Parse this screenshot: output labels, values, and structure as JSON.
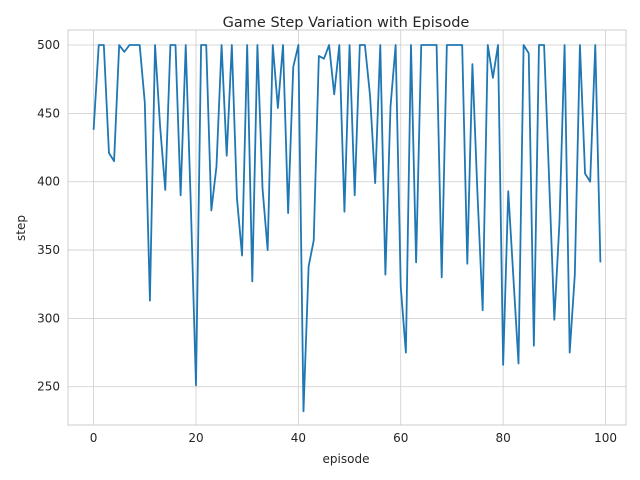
{
  "chart_data": {
    "type": "line",
    "title": "Game Step Variation with Episode",
    "xlabel": "episode",
    "ylabel": "step",
    "xlim": [
      -5,
      104
    ],
    "ylim": [
      222,
      511
    ],
    "xticks": [
      0,
      20,
      40,
      60,
      80,
      100
    ],
    "yticks": [
      250,
      300,
      350,
      400,
      450,
      500
    ],
    "grid": true,
    "color": "#1f77b4",
    "series": [
      {
        "x": [
          0,
          1,
          2,
          3,
          4,
          5,
          6,
          7,
          8,
          9,
          10,
          11,
          12,
          13,
          14,
          15,
          16,
          17,
          18,
          19,
          20,
          21,
          22,
          23,
          24,
          25,
          26,
          27,
          28,
          29,
          30,
          31,
          32,
          33,
          34,
          35,
          36,
          37,
          38,
          39,
          40,
          41,
          42,
          43,
          44,
          45,
          46,
          47,
          48,
          49,
          50,
          51,
          52,
          53,
          54,
          55,
          56,
          57,
          58,
          59,
          60,
          61,
          62,
          63,
          64,
          65,
          66,
          67,
          68,
          69,
          70,
          71,
          72,
          73,
          74,
          75,
          76,
          77,
          78,
          79,
          80,
          81,
          82,
          83,
          84,
          85,
          86,
          87,
          88,
          89,
          90,
          91,
          92,
          93,
          94,
          95,
          96,
          97,
          98,
          99
        ],
        "values": [
          438,
          500,
          500,
          421,
          415,
          500,
          495,
          500,
          500,
          500,
          458,
          313,
          500,
          440,
          394,
          500,
          500,
          390,
          500,
          382,
          251,
          500,
          500,
          379,
          411,
          500,
          419,
          500,
          388,
          346,
          500,
          327,
          500,
          395,
          350,
          500,
          454,
          500,
          377,
          484,
          500,
          232,
          338,
          357,
          492,
          490,
          500,
          464,
          500,
          378,
          500,
          390,
          500,
          500,
          463,
          399,
          500,
          332,
          455,
          500,
          323,
          275,
          500,
          341,
          500,
          500,
          500,
          500,
          330,
          500,
          500,
          500,
          500,
          340,
          486,
          390,
          306,
          500,
          476,
          500,
          266,
          393,
          330,
          267,
          500,
          494,
          280,
          500,
          500,
          400,
          299,
          370,
          500,
          275,
          332,
          500,
          406,
          400,
          500,
          341
        ]
      }
    ]
  }
}
